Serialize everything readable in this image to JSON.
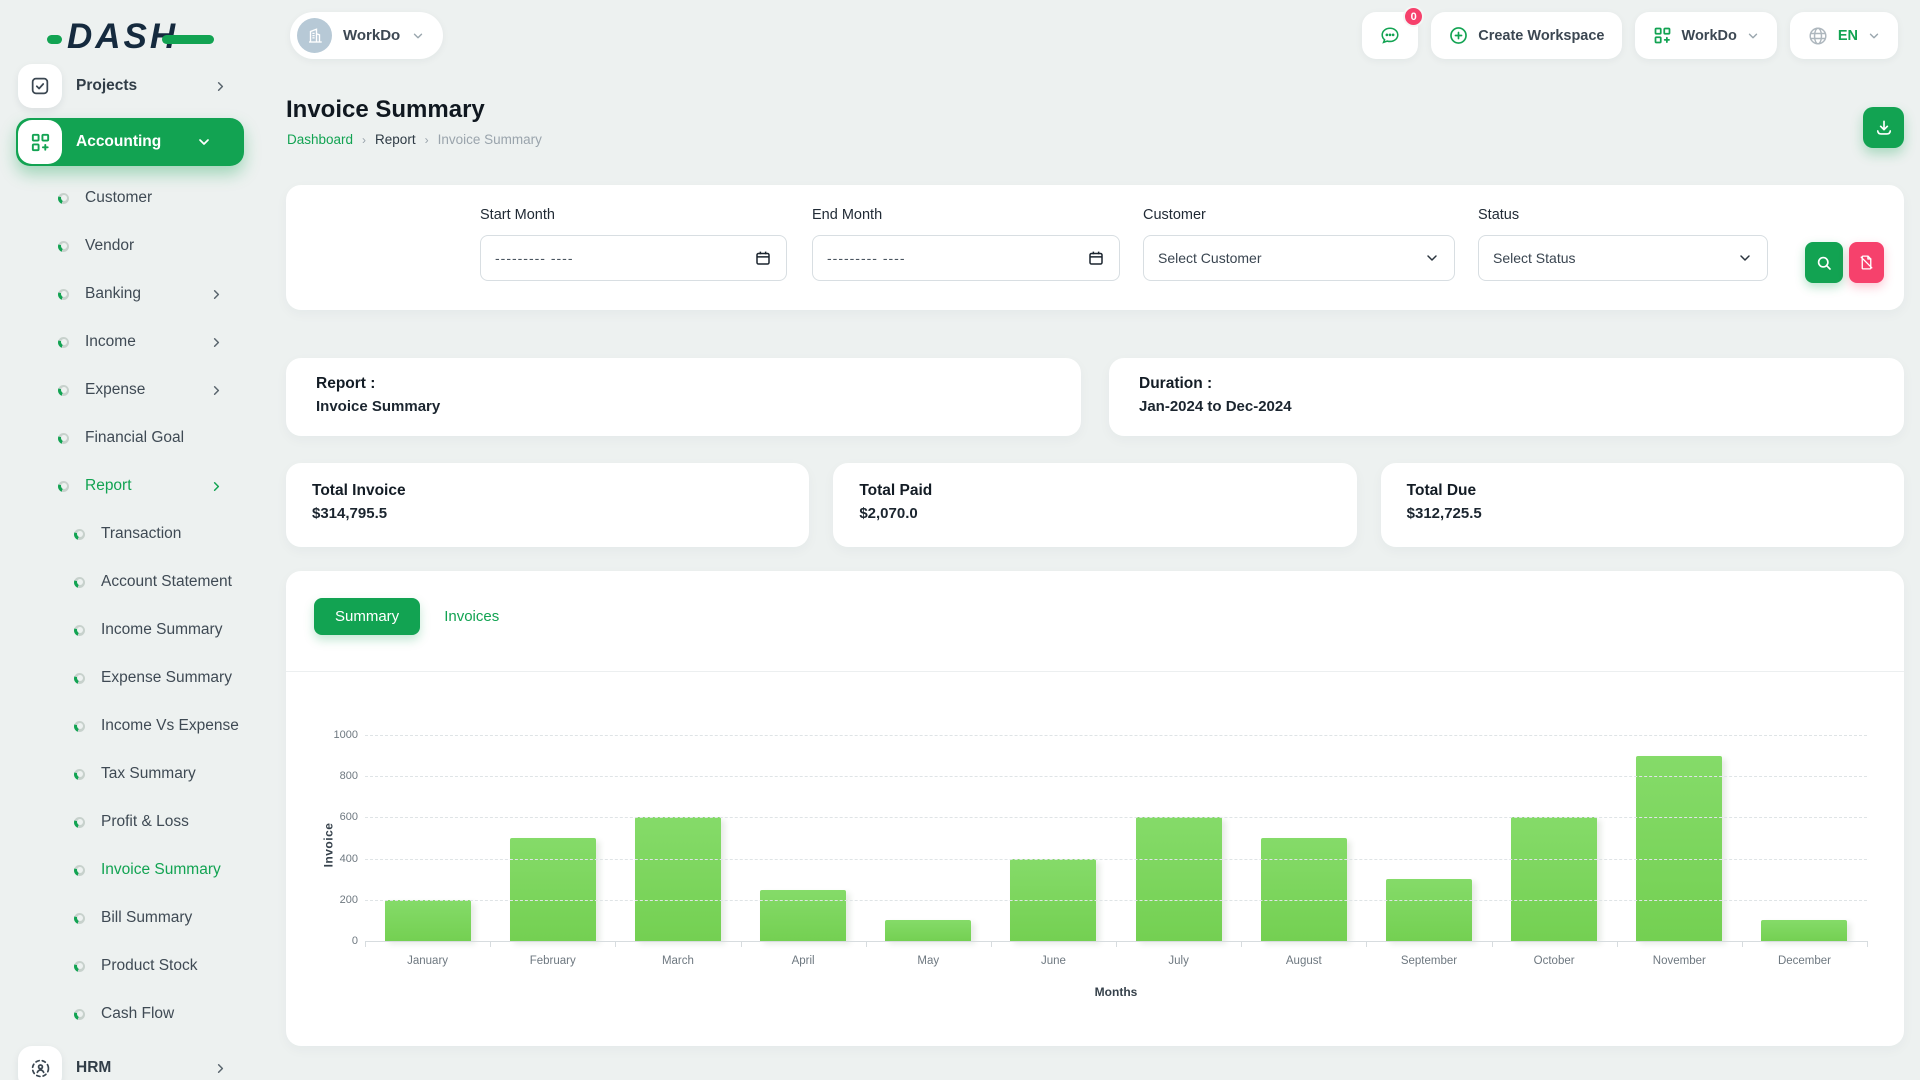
{
  "colors": {
    "primary": "#12A352",
    "pink": "#F6416C",
    "bar_green": "#7BD35E",
    "background": "#EDF1F0"
  },
  "topbar": {
    "logo_text": "DASH",
    "workspace_switcher": {
      "name": "WorkDo"
    },
    "chat": {
      "badge": "0"
    },
    "create_workspace_label": "Create Workspace",
    "account_menu_label": "WorkDo",
    "language": {
      "code": "EN"
    }
  },
  "sidebar": {
    "items": [
      {
        "label": "Projects",
        "kind": "top",
        "icon": "checkbox-icon",
        "chevron": "right"
      },
      {
        "label": "Accounting",
        "kind": "top",
        "icon": "grid-plus-icon",
        "chevron": "down",
        "active": true
      },
      {
        "label": "Customer",
        "kind": "sub"
      },
      {
        "label": "Vendor",
        "kind": "sub"
      },
      {
        "label": "Banking",
        "kind": "sub",
        "chevron": "right"
      },
      {
        "label": "Income",
        "kind": "sub",
        "chevron": "right"
      },
      {
        "label": "Expense",
        "kind": "sub",
        "chevron": "right"
      },
      {
        "label": "Financial Goal",
        "kind": "sub"
      },
      {
        "label": "Report",
        "kind": "sub",
        "chevron": "right",
        "open": true
      },
      {
        "label": "Transaction",
        "kind": "sub2"
      },
      {
        "label": "Account Statement",
        "kind": "sub2"
      },
      {
        "label": "Income Summary",
        "kind": "sub2"
      },
      {
        "label": "Expense Summary",
        "kind": "sub2"
      },
      {
        "label": "Income Vs Expense",
        "kind": "sub2"
      },
      {
        "label": "Tax Summary",
        "kind": "sub2"
      },
      {
        "label": "Profit & Loss",
        "kind": "sub2"
      },
      {
        "label": "Invoice Summary",
        "kind": "sub2",
        "active": true
      },
      {
        "label": "Bill Summary",
        "kind": "sub2"
      },
      {
        "label": "Product Stock",
        "kind": "sub2"
      },
      {
        "label": "Cash Flow",
        "kind": "sub2"
      },
      {
        "label": "HRM",
        "kind": "top",
        "icon": "hrm-icon",
        "chevron": "right"
      }
    ]
  },
  "header": {
    "title": "Invoice Summary",
    "breadcrumb": [
      "Dashboard",
      "Report",
      "Invoice Summary"
    ]
  },
  "filters": {
    "start_month": {
      "label": "Start Month",
      "placeholder": "--------- ----"
    },
    "end_month": {
      "label": "End Month",
      "placeholder": "--------- ----"
    },
    "customer": {
      "label": "Customer",
      "value": "Select Customer"
    },
    "status": {
      "label": "Status",
      "value": "Select Status"
    }
  },
  "report_info": {
    "report": {
      "title": "Report :",
      "value": "Invoice Summary"
    },
    "duration": {
      "title": "Duration :",
      "value": "Jan-2024 to Dec-2024"
    }
  },
  "totals": [
    {
      "label": "Total Invoice",
      "value": "$314,795.5"
    },
    {
      "label": "Total Paid",
      "value": "$2,070.0"
    },
    {
      "label": "Total Due",
      "value": "$312,725.5"
    }
  ],
  "tabs": [
    {
      "label": "Summary",
      "active": true
    },
    {
      "label": "Invoices",
      "active": false
    }
  ],
  "chart_data": {
    "type": "bar",
    "title": "",
    "categories": [
      "January",
      "February",
      "March",
      "April",
      "May",
      "June",
      "July",
      "August",
      "September",
      "October",
      "November",
      "December"
    ],
    "values": [
      200,
      500,
      600,
      250,
      100,
      400,
      600,
      500,
      300,
      600,
      900,
      100
    ],
    "xlabel": "Months",
    "ylabel": "Invoice",
    "ylim": [
      0,
      1000
    ],
    "yticks": [
      0,
      200,
      400,
      600,
      800,
      1000
    ],
    "grid": "dashed-horizontal",
    "legend": "none",
    "bar_color": "#7BD35E"
  }
}
